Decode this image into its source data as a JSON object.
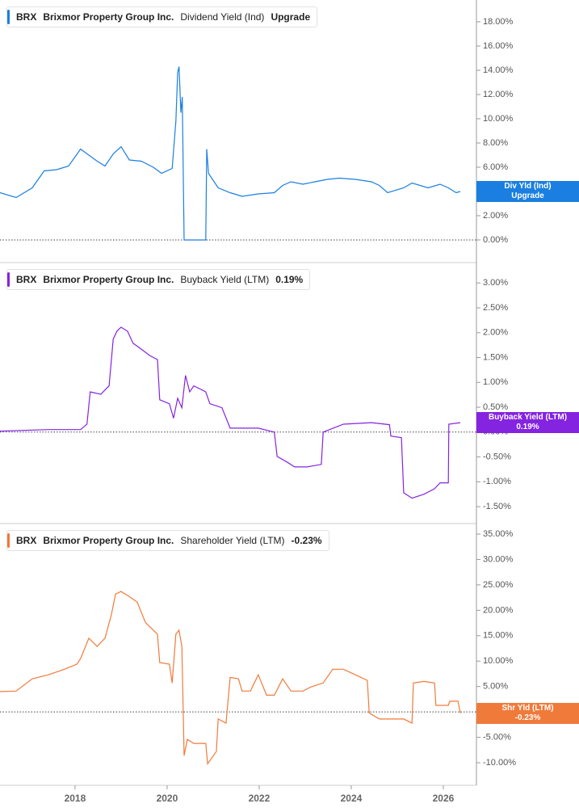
{
  "chart_data": [
    {
      "type": "line",
      "ticker": "BRX",
      "company": "Brixmor Property Group Inc.",
      "value_label": "Upgrade",
      "badge_label": "Div Yld (Ind)",
      "series": [
        {
          "name": "Dividend Yield (Ind)",
          "color": "#1a7fe0",
          "x": [
            2016.37,
            2016.72,
            2017.07,
            2017.33,
            2017.6,
            2017.86,
            2018.12,
            2018.3,
            2018.48,
            2018.65,
            2018.83,
            2019.0,
            2019.18,
            2019.44,
            2019.7,
            2019.88,
            2020.11,
            2020.19,
            2020.23,
            2020.26,
            2020.3,
            2020.33,
            2020.37,
            2020.84,
            2020.86,
            2020.9,
            2021.11,
            2021.37,
            2021.63,
            2021.98,
            2022.33,
            2022.51,
            2022.69,
            2022.95,
            2023.21,
            2023.48,
            2023.74,
            2024.09,
            2024.44,
            2024.61,
            2024.79,
            2025.14,
            2025.32,
            2025.67,
            2025.93,
            2026.11,
            2026.28,
            2026.37
          ],
          "values": [
            3.9,
            3.5,
            4.3,
            5.7,
            5.8,
            6.1,
            7.5,
            7.0,
            6.5,
            6.1,
            7.1,
            7.7,
            6.6,
            6.5,
            6.0,
            5.5,
            5.9,
            9.8,
            13.8,
            14.3,
            10.5,
            11.8,
            0,
            0,
            7.5,
            5.5,
            4.3,
            3.9,
            3.6,
            3.8,
            3.9,
            4.5,
            4.8,
            4.6,
            4.8,
            5.0,
            5.1,
            5.0,
            4.8,
            4.5,
            3.9,
            4.3,
            4.7,
            4.3,
            4.6,
            4.3,
            3.9,
            4.0
          ]
        }
      ],
      "xlim": [
        2016.37,
        2026.72
      ],
      "ylim": [
        -1.87,
        19.8
      ],
      "yticks": [
        {
          "value": 0,
          "label": "0.00%"
        },
        {
          "value": 2,
          "label": "2.00%"
        },
        {
          "value": 4,
          "label": "4.00%"
        },
        {
          "value": 6,
          "label": "6.00%"
        },
        {
          "value": 8,
          "label": "8.00%"
        },
        {
          "value": 10,
          "label": "10.00%"
        },
        {
          "value": 12,
          "label": "12.00%"
        },
        {
          "value": 14,
          "label": "14.00%"
        },
        {
          "value": 16,
          "label": "16.00%"
        },
        {
          "value": 18,
          "label": "18.00%"
        }
      ]
    },
    {
      "type": "line",
      "ticker": "BRX",
      "company": "Brixmor Property Group Inc.",
      "value_label": "0.19%",
      "badge_label": "Buyback Yield (LTM)",
      "series": [
        {
          "name": "Buyback Yield (LTM)",
          "color": "#8424e0",
          "x": [
            2016.37,
            2017.42,
            2018.12,
            2018.26,
            2018.33,
            2018.56,
            2018.74,
            2018.83,
            2018.91,
            2019.0,
            2019.14,
            2019.26,
            2019.44,
            2019.62,
            2019.79,
            2019.84,
            2020.05,
            2020.14,
            2020.23,
            2020.32,
            2020.4,
            2020.49,
            2020.58,
            2020.84,
            2020.93,
            2021.19,
            2021.37,
            2021.98,
            2022.33,
            2022.39,
            2022.6,
            2022.77,
            2023.04,
            2023.35,
            2023.39,
            2023.83,
            2024.44,
            2024.83,
            2024.86,
            2025.09,
            2025.14,
            2025.32,
            2025.58,
            2025.81,
            2025.93,
            2026.11,
            2026.12,
            2026.37
          ],
          "values": [
            0.02,
            0.05,
            0.05,
            0.16,
            0.81,
            0.76,
            0.93,
            1.87,
            2.03,
            2.11,
            2.03,
            1.79,
            1.67,
            1.54,
            1.46,
            0.65,
            0.57,
            0.28,
            0.68,
            0.49,
            1.14,
            0.81,
            0.93,
            0.81,
            0.57,
            0.49,
            0.08,
            0.08,
            0,
            -0.49,
            -0.6,
            -0.7,
            -0.7,
            -0.65,
            0,
            0.16,
            0.19,
            0.15,
            -0.08,
            -0.11,
            -1.22,
            -1.33,
            -1.25,
            -1.14,
            -1.02,
            -1.02,
            0.16,
            0.19
          ]
        }
      ],
      "xlim": [
        2016.37,
        2026.72
      ],
      "ylim": [
        -1.84,
        3.41
      ],
      "yticks": [
        {
          "value": -1.5,
          "label": "-1.50%"
        },
        {
          "value": -1,
          "label": "-1.00%"
        },
        {
          "value": -0.5,
          "label": "-0.50%"
        },
        {
          "value": 0,
          "label": "0.00%"
        },
        {
          "value": 0.5,
          "label": "0.50%"
        },
        {
          "value": 1,
          "label": "1.00%"
        },
        {
          "value": 1.5,
          "label": "1.50%"
        },
        {
          "value": 2,
          "label": "2.00%"
        },
        {
          "value": 2.5,
          "label": "2.50%"
        },
        {
          "value": 3,
          "label": "3.00%"
        }
      ]
    },
    {
      "type": "line",
      "ticker": "BRX",
      "company": "Brixmor Property Group Inc.",
      "value_label": "-0.23%",
      "badge_label": "Shr Yld (LTM)",
      "series": [
        {
          "name": "Shareholder Yield (LTM)",
          "color": "#f07a3a",
          "x": [
            2016.37,
            2016.72,
            2017.07,
            2017.42,
            2017.77,
            2018.04,
            2018.12,
            2018.3,
            2018.48,
            2018.65,
            2018.79,
            2018.88,
            2019.0,
            2019.18,
            2019.35,
            2019.53,
            2019.79,
            2019.84,
            2020.05,
            2020.11,
            2020.19,
            2020.26,
            2020.32,
            2020.37,
            2020.44,
            2020.58,
            2020.84,
            2020.88,
            2021.07,
            2021.11,
            2021.28,
            2021.37,
            2021.55,
            2021.63,
            2021.81,
            2021.98,
            2022.16,
            2022.33,
            2022.51,
            2022.69,
            2022.95,
            2023.12,
            2023.39,
            2023.6,
            2023.83,
            2024.09,
            2024.35,
            2024.39,
            2024.61,
            2025.14,
            2025.32,
            2025.35,
            2025.58,
            2025.81,
            2025.84,
            2026.11,
            2026.14,
            2026.32,
            2026.37
          ],
          "values": [
            4.0,
            4.1,
            6.5,
            7.3,
            8.4,
            9.4,
            10.5,
            14.5,
            12.9,
            14.5,
            19.2,
            23.2,
            23.7,
            22.7,
            21.6,
            17.6,
            15.3,
            9.7,
            9.4,
            5.7,
            15.3,
            16.1,
            12.9,
            -8.6,
            -5.4,
            -6.2,
            -6.2,
            -10.2,
            -7.8,
            -1.4,
            -2.2,
            6.8,
            6.5,
            4.1,
            4.1,
            7.3,
            3.3,
            3.3,
            6.5,
            4.1,
            4.1,
            4.9,
            5.7,
            8.4,
            8.4,
            7.3,
            6.2,
            -0.2,
            -1.4,
            -1.4,
            -2.2,
            5.7,
            6.0,
            5.7,
            1.3,
            1.3,
            2.1,
            2.1,
            -0.23
          ]
        }
      ],
      "xlim": [
        2016.37,
        2026.72
      ],
      "ylim": [
        -14.45,
        37.07
      ],
      "yticks": [
        {
          "value": -10,
          "label": "-10.00%"
        },
        {
          "value": -5,
          "label": "-5.00%"
        },
        {
          "value": 0,
          "label": "0.00%"
        },
        {
          "value": 5,
          "label": "5.00%"
        },
        {
          "value": 10,
          "label": "10.00%"
        },
        {
          "value": 15,
          "label": "15.00%"
        },
        {
          "value": 20,
          "label": "20.00%"
        },
        {
          "value": 25,
          "label": "25.00%"
        },
        {
          "value": 30,
          "label": "30.00%"
        },
        {
          "value": 35,
          "label": "35.00%"
        }
      ],
      "xticks": [
        2018,
        2020,
        2022,
        2024,
        2026
      ]
    }
  ]
}
